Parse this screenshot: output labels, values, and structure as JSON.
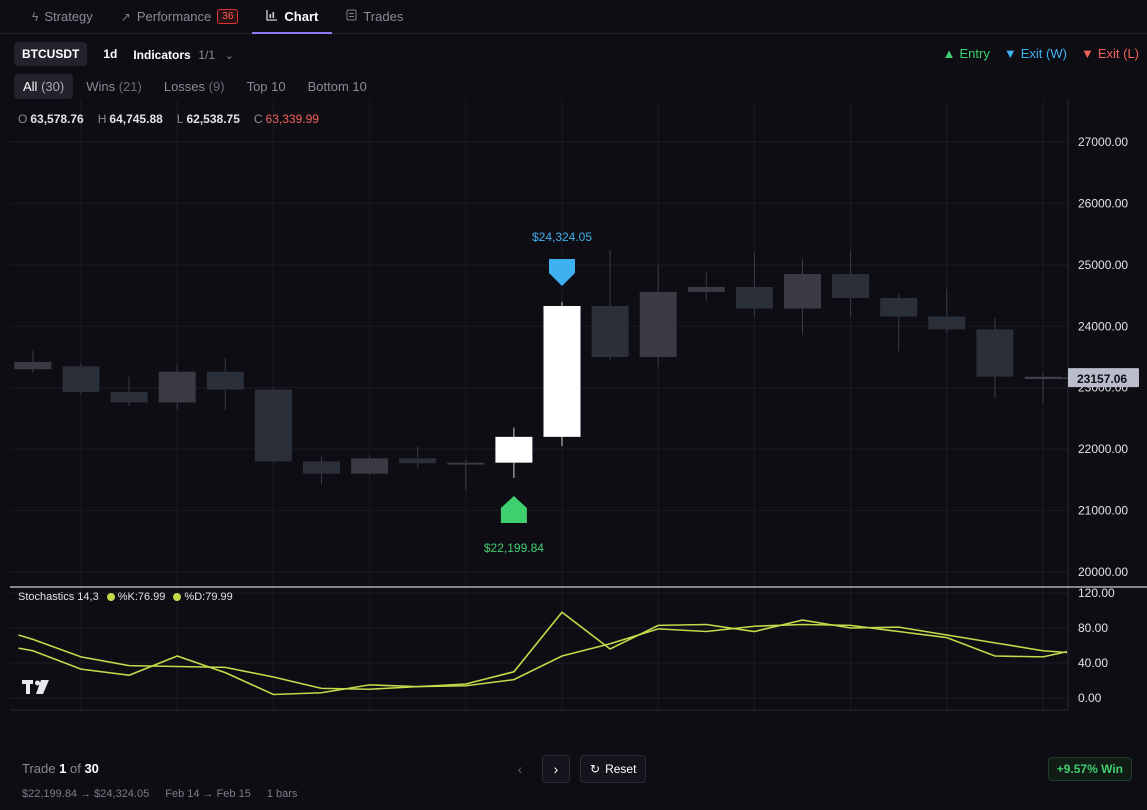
{
  "tabs": [
    {
      "label": "Strategy",
      "icon": "bolt-icon",
      "glyph": "⚡"
    },
    {
      "label": "Performance",
      "icon": "trend-icon",
      "glyph": "↗",
      "badge": "36"
    },
    {
      "label": "Chart",
      "icon": "chart-icon",
      "glyph": "📊"
    },
    {
      "label": "Trades",
      "icon": "list-icon",
      "glyph": "☰"
    }
  ],
  "toolbar": {
    "symbol": "BTCUSDT",
    "interval": "1d",
    "indicators_label": "Indicators",
    "indicators_count": "1/1"
  },
  "legend": {
    "entry": "Entry",
    "exit_win": "Exit (W)",
    "exit_loss": "Exit (L)"
  },
  "filters": [
    {
      "label": "All",
      "count": "(30)"
    },
    {
      "label": "Wins",
      "count": "(21)"
    },
    {
      "label": "Losses",
      "count": "(9)"
    },
    {
      "label": "Top 10",
      "count": ""
    },
    {
      "label": "Bottom 10",
      "count": ""
    }
  ],
  "ohlc": {
    "o_label": "O",
    "o": "63,578.76",
    "h_label": "H",
    "h": "64,745.88",
    "l_label": "L",
    "l": "62,538.75",
    "c_label": "C",
    "c": "63,339.99"
  },
  "stochastics": {
    "name": "Stochastics 14,3",
    "k": "%K:76.99",
    "d": "%D:79.99"
  },
  "colors": {
    "entry": "#3ecf6e",
    "exit_win": "#3fb0f0",
    "exit_loss": "#f0635a",
    "stoch": "#c6d94a",
    "candle": "#2b2f3a",
    "trade_candle": "#ffffff",
    "accent": "#8b7cf6"
  },
  "chart_data": {
    "type": "candlestick",
    "y_ticks": [
      "27000.00",
      "26000.00",
      "25000.00",
      "24000.00",
      "23000.00",
      "22000.00",
      "21000.00",
      "20000.00"
    ],
    "ylim": [
      19800,
      27600
    ],
    "x_ticks": [
      "5",
      "7",
      "9",
      "11",
      "13",
      "15",
      "17",
      "19",
      "21",
      "23",
      "25"
    ],
    "last_price": "23157.06",
    "candles": [
      {
        "day": 4,
        "o": 23300,
        "h": 23600,
        "l": 23250,
        "c": 23420
      },
      {
        "day": 5,
        "o": 23350,
        "h": 23400,
        "l": 22900,
        "c": 22930
      },
      {
        "day": 6,
        "o": 22930,
        "h": 23180,
        "l": 22700,
        "c": 22760
      },
      {
        "day": 7,
        "o": 22760,
        "h": 23380,
        "l": 22650,
        "c": 23260
      },
      {
        "day": 8,
        "o": 23260,
        "h": 23480,
        "l": 22640,
        "c": 22970
      },
      {
        "day": 9,
        "o": 22970,
        "h": 23000,
        "l": 21780,
        "c": 21800
      },
      {
        "day": 10,
        "o": 21800,
        "h": 21880,
        "l": 21430,
        "c": 21600
      },
      {
        "day": 11,
        "o": 21600,
        "h": 21900,
        "l": 21580,
        "c": 21850
      },
      {
        "day": 12,
        "o": 21850,
        "h": 22050,
        "l": 21700,
        "c": 21770
      },
      {
        "day": 13,
        "o": 21770,
        "h": 21820,
        "l": 21340,
        "c": 21780
      },
      {
        "day": 14,
        "o": 21780,
        "h": 22350,
        "l": 21530,
        "c": 22200
      },
      {
        "day": 15,
        "o": 22200,
        "h": 24400,
        "l": 22050,
        "c": 24330
      },
      {
        "day": 16,
        "o": 24330,
        "h": 25240,
        "l": 23450,
        "c": 23500
      },
      {
        "day": 17,
        "o": 23500,
        "h": 25000,
        "l": 23340,
        "c": 24560
      },
      {
        "day": 18,
        "o": 24560,
        "h": 24870,
        "l": 24420,
        "c": 24640
      },
      {
        "day": 19,
        "o": 24640,
        "h": 25200,
        "l": 24150,
        "c": 24290
      },
      {
        "day": 20,
        "o": 24290,
        "h": 25100,
        "l": 23860,
        "c": 24850
      },
      {
        "day": 21,
        "o": 24850,
        "h": 25240,
        "l": 24150,
        "c": 24460
      },
      {
        "day": 22,
        "o": 24460,
        "h": 24520,
        "l": 23600,
        "c": 24160
      },
      {
        "day": 23,
        "o": 24160,
        "h": 24600,
        "l": 23900,
        "c": 23950
      },
      {
        "day": 24,
        "o": 23950,
        "h": 24130,
        "l": 22830,
        "c": 23180
      },
      {
        "day": 25,
        "o": 23180,
        "h": 23250,
        "l": 22750,
        "c": 23157
      }
    ],
    "trade_days": [
      14,
      15
    ],
    "entry": {
      "day": 14,
      "label": "$22,199.84"
    },
    "exit": {
      "day": 15,
      "label": "$24,324.05"
    },
    "stoch": {
      "y_ticks": [
        "120.00",
        "80.00",
        "40.00",
        "0.00"
      ],
      "ylim": [
        -10,
        122
      ],
      "days": [
        3.7,
        4,
        5,
        6,
        7,
        8,
        9,
        10,
        11,
        12,
        13,
        14,
        15,
        16,
        17,
        18,
        19,
        20,
        21,
        22,
        23,
        24,
        25,
        25.5
      ],
      "k": [
        57,
        54,
        33,
        26,
        48,
        29,
        4,
        6,
        15,
        13,
        16,
        30,
        98,
        56,
        83,
        84,
        76,
        89,
        80,
        81,
        72,
        63,
        54,
        52
      ],
      "d": [
        72,
        67,
        47,
        37,
        36,
        35,
        24,
        11,
        10,
        13,
        14,
        21,
        48,
        62,
        79,
        76,
        82,
        84,
        83,
        76,
        69,
        48,
        47,
        53
      ]
    }
  },
  "footer": {
    "trade_label": "Trade",
    "trade_current": "1",
    "trade_of": "of",
    "trade_total": "30",
    "price_path": "$22,199.84 → $24,324.05",
    "date_range": "Feb 14 → Feb 15",
    "bars": "1 bars",
    "reset": "Reset",
    "win_badge": "+9.57% Win"
  }
}
